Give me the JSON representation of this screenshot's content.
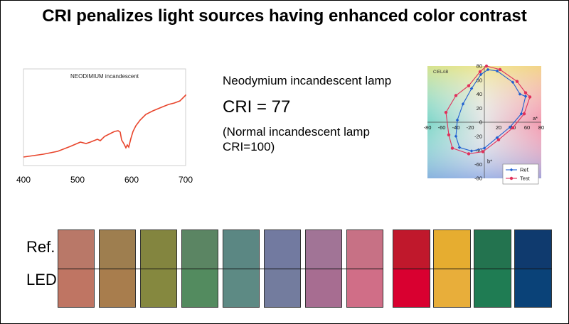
{
  "title": "CRI penalizes light sources having enhanced color contrast",
  "spectrum": {
    "title": "NEODIMIUM incandescent",
    "x_ticks": [
      "400",
      "500",
      "600",
      "700"
    ]
  },
  "info": {
    "lamp_name": "Neodymium incandescent lamp",
    "cri": "CRI = 77",
    "note": "(Normal incandescent lamp CRI=100)"
  },
  "chart_data": {
    "type": "scatter",
    "title": "CIELAB",
    "xlabel": "a*",
    "ylabel": "b*",
    "xlim": [
      -80,
      80
    ],
    "ylim": [
      -80,
      80
    ],
    "x_ticks": [
      "-80",
      "-60",
      "-40",
      "-20",
      "0",
      "20",
      "40",
      "60",
      "80"
    ],
    "y_ticks": [
      "80",
      "60",
      "40",
      "20",
      "0",
      "-20",
      "-40",
      "-60",
      "-80"
    ],
    "legend_position": "bottom-right",
    "series": [
      {
        "name": "Ref.",
        "color": "#1f5fd0",
        "points": [
          [
            5,
            75
          ],
          [
            18,
            73
          ],
          [
            40,
            57
          ],
          [
            50,
            40
          ],
          [
            58,
            37
          ],
          [
            52,
            12
          ],
          [
            36,
            -7
          ],
          [
            18,
            -22
          ],
          [
            0,
            -37
          ],
          [
            -18,
            -41
          ],
          [
            -35,
            -36
          ],
          [
            -40,
            -20
          ],
          [
            -38,
            3
          ],
          [
            -30,
            26
          ],
          [
            -18,
            48
          ],
          [
            -5,
            68
          ],
          [
            5,
            75
          ]
        ]
      },
      {
        "name": "Test",
        "color": "#e0305a",
        "points": [
          [
            3,
            80
          ],
          [
            22,
            75
          ],
          [
            46,
            58
          ],
          [
            58,
            42
          ],
          [
            64,
            36
          ],
          [
            56,
            12
          ],
          [
            40,
            -8
          ],
          [
            20,
            -25
          ],
          [
            -2,
            -42
          ],
          [
            -22,
            -45
          ],
          [
            -45,
            -37
          ],
          [
            -50,
            -18
          ],
          [
            -54,
            14
          ],
          [
            -40,
            38
          ],
          [
            -22,
            52
          ],
          [
            -6,
            72
          ],
          [
            3,
            80
          ]
        ]
      }
    ]
  },
  "swatches": {
    "row_labels": [
      "Ref.",
      "LED"
    ],
    "group1": [
      {
        "ref": "#b97868",
        "led": "#bf7563"
      },
      {
        "ref": "#9e7e4f",
        "led": "#a87d4d"
      },
      {
        "ref": "#83853f",
        "led": "#85883f"
      },
      {
        "ref": "#5b8563",
        "led": "#538b5f"
      },
      {
        "ref": "#5b8783",
        "led": "#5d8a84"
      },
      {
        "ref": "#727aa0",
        "led": "#737c9e"
      },
      {
        "ref": "#a17496",
        "led": "#a76d91"
      },
      {
        "ref": "#c77185",
        "led": "#d06e87"
      }
    ],
    "group2": [
      {
        "ref": "#c0182c",
        "led": "#d90030"
      },
      {
        "ref": "#e6ad30",
        "led": "#e8ae3a"
      },
      {
        "ref": "#23734f",
        "led": "#1f7c53"
      },
      {
        "ref": "#0f3a6e",
        "led": "#0a4278"
      }
    ]
  }
}
